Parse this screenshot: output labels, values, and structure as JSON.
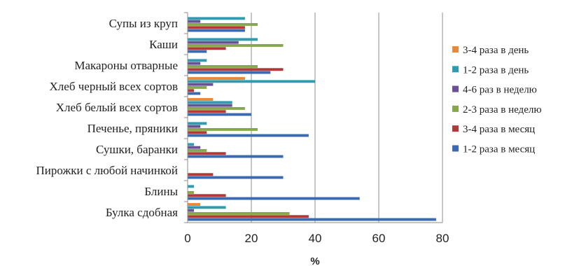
{
  "chart_data": {
    "type": "bar",
    "orientation": "horizontal",
    "xlabel": "%",
    "ylabel": "",
    "xlim": [
      0,
      80
    ],
    "xticks": [
      0,
      20,
      40,
      60,
      80
    ],
    "grid": "vertical",
    "legend_position": "right",
    "categories": [
      "Супы из круп",
      "Каши",
      "Макароны отварные",
      "Хлеб черный всех сортов",
      "Хлеб белый всех сортов",
      "Печенье, пряники",
      "Сушки, баранки",
      "Пирожки с любой начинкой",
      "Блины",
      "Булка сдобная"
    ],
    "series": [
      {
        "name": "3-4 раза в день",
        "color": "#E8893A",
        "values": [
          0,
          0,
          0,
          18,
          8,
          0,
          0,
          0,
          0,
          4
        ]
      },
      {
        "name": "1-2 раза в день",
        "color": "#2E9BB0",
        "values": [
          18,
          22,
          6,
          40,
          14,
          6,
          2,
          0,
          2,
          12
        ]
      },
      {
        "name": "4-6 раз в неделю",
        "color": "#6A5094",
        "values": [
          4,
          16,
          4,
          8,
          14,
          4,
          4,
          0,
          0,
          2
        ]
      },
      {
        "name": "2-3 раза в неделю",
        "color": "#86A84A",
        "values": [
          22,
          30,
          22,
          6,
          18,
          22,
          6,
          0,
          2,
          32
        ]
      },
      {
        "name": "3-4 раза в месяц",
        "color": "#B03A3A",
        "values": [
          18,
          12,
          30,
          2,
          12,
          6,
          12,
          8,
          12,
          38
        ]
      },
      {
        "name": "1-2 раза в месяц",
        "color": "#3B6AAE",
        "values": [
          18,
          6,
          26,
          4,
          20,
          38,
          30,
          30,
          54,
          78
        ]
      }
    ]
  }
}
